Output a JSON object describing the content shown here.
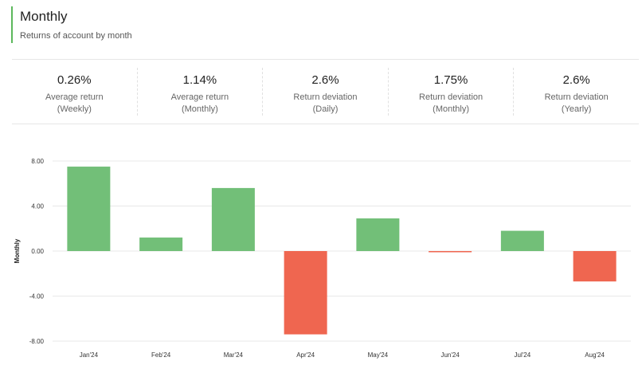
{
  "header": {
    "title": "Monthly",
    "subtitle": "Returns of account by month"
  },
  "stats": [
    {
      "value": "0.26%",
      "label": "Average return (Weekly)"
    },
    {
      "value": "1.14%",
      "label": "Average return (Monthly)"
    },
    {
      "value": "2.6%",
      "label": "Return deviation (Daily)"
    },
    {
      "value": "1.75%",
      "label": "Return deviation (Monthly)"
    },
    {
      "value": "2.6%",
      "label": "Return deviation (Yearly)"
    }
  ],
  "colors": {
    "positive": "#72bf78",
    "negative": "#ef6650",
    "accent": "#5cb85c"
  },
  "chart_data": {
    "type": "bar",
    "categories": [
      "Jan'24",
      "Feb'24",
      "Mar'24",
      "Apr'24",
      "May'24",
      "Jun'24",
      "Jul'24",
      "Aug'24"
    ],
    "values": [
      7.5,
      1.2,
      5.6,
      -7.4,
      2.9,
      -0.1,
      1.8,
      -2.7
    ],
    "ylabel": "Monthly",
    "ylim": [
      -8,
      8
    ],
    "yticks": [
      "8.00",
      "4.00",
      "0.00",
      "-4.00",
      "-8.00"
    ],
    "grid": true
  }
}
